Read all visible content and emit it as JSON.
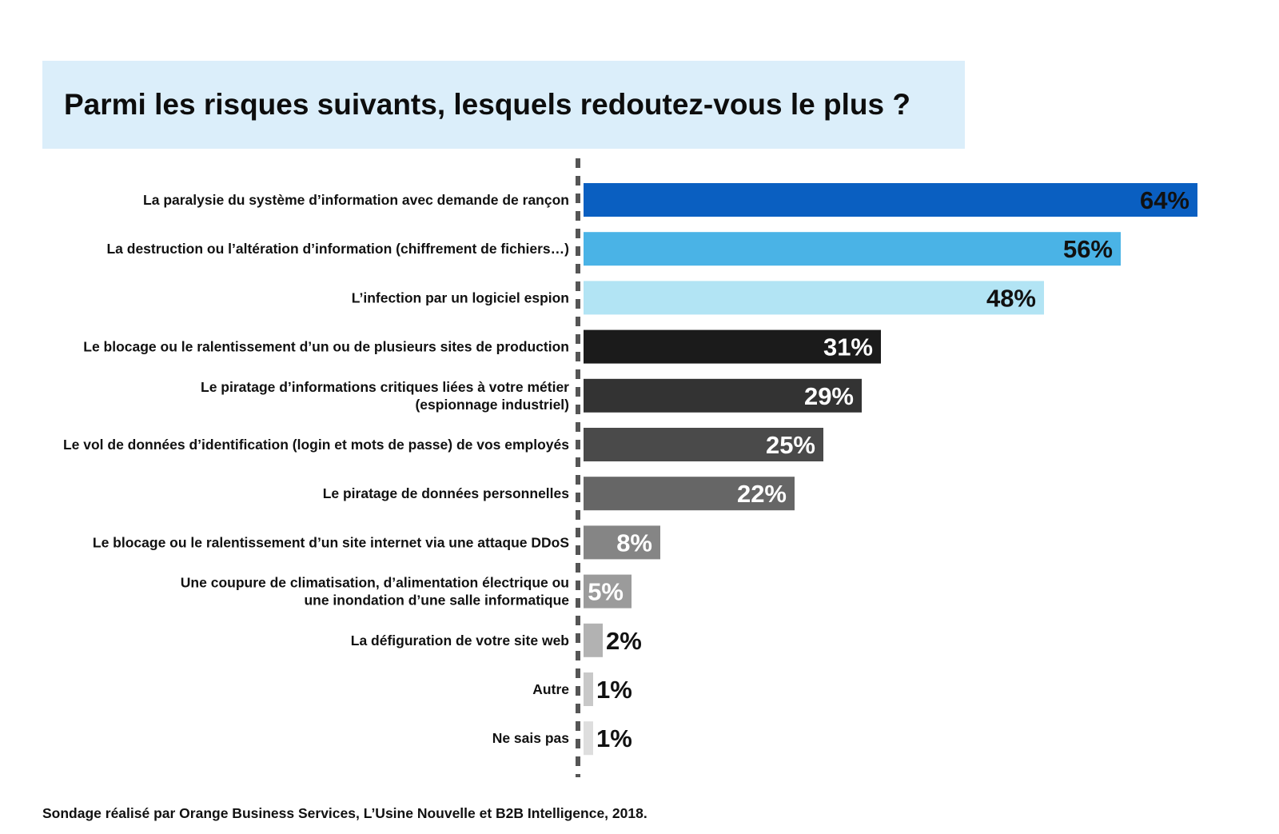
{
  "chart_data": {
    "type": "bar",
    "orientation": "horizontal",
    "title": "Parmi les risques suivants, lesquels redoutez-vous le plus ?",
    "xlabel": "",
    "ylabel": "",
    "xlim": [
      0,
      100
    ],
    "grid": false,
    "legend": "none",
    "categories": [
      [
        "La paralysie du système d’information avec demande de rançon"
      ],
      [
        "La destruction ou l’altération d’information (chiffrement de fichiers…)"
      ],
      [
        "L’infection par un logiciel espion"
      ],
      [
        "Le blocage ou le ralentissement d’un ou de plusieurs sites de production"
      ],
      [
        "Le piratage d’informations critiques liées à votre métier",
        "(espionnage industriel)"
      ],
      [
        "Le vol de données d’identification (login et mots de passe) de vos employés"
      ],
      [
        "Le piratage de données personnelles"
      ],
      [
        "Le blocage ou le ralentissement d’un site internet via une attaque DDoS"
      ],
      [
        "Une coupure de climatisation, d’alimentation électrique ou",
        "une inondation d’une salle informatique"
      ],
      [
        "La défiguration de votre site web"
      ],
      [
        "Autre"
      ],
      [
        "Ne sais pas"
      ]
    ],
    "values": [
      64,
      56,
      48,
      31,
      29,
      25,
      22,
      8,
      5,
      2,
      1,
      1
    ],
    "value_labels": [
      "64%",
      "56%",
      "48%",
      "31%",
      "29%",
      "25%",
      "22%",
      "8%",
      "5%",
      "2%",
      "1%",
      "1%"
    ],
    "colors": [
      "#0a5fc1",
      "#4ab3e6",
      "#b2e4f4",
      "#1b1b1b",
      "#333333",
      "#4a4a4a",
      "#666666",
      "#858585",
      "#9b9b9b",
      "#b2b2b2",
      "#c8c8c8",
      "#dedede"
    ],
    "label_colors": [
      "#111111",
      "#111111",
      "#111111",
      "#ffffff",
      "#ffffff",
      "#ffffff",
      "#ffffff",
      "#ffffff",
      "#ffffff",
      "#111111",
      "#111111",
      "#111111"
    ],
    "label_inside": [
      true,
      true,
      true,
      true,
      true,
      true,
      true,
      true,
      true,
      false,
      false,
      false
    ]
  },
  "source": "Sondage réalisé par Orange Business Services, L’Usine Nouvelle et B2B Intelligence, 2018.",
  "colors": {
    "title_background": "#dbeefa",
    "axis_dash": "#555555"
  }
}
